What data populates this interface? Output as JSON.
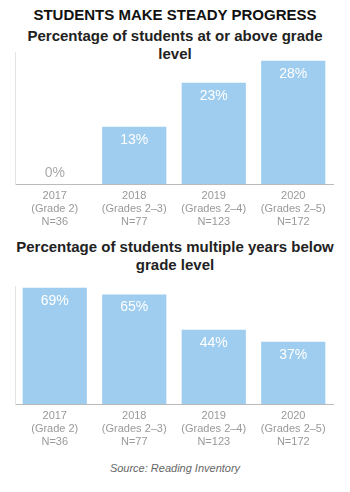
{
  "title": "STUDENTS MAKE STEADY PROGRESS",
  "source": "Source: Reading Inventory",
  "chart_data": [
    {
      "type": "bar",
      "title": "Percentage of students at or above grade level",
      "categories": [
        [
          "2017",
          "(Grade 2)",
          "N=36"
        ],
        [
          "2018",
          "(Grades 2–3)",
          "N=77"
        ],
        [
          "2019",
          "(Grades 2–4)",
          "N=123"
        ],
        [
          "2020",
          "(Grades 2–5)",
          "N=172"
        ]
      ],
      "values": [
        0,
        13,
        23,
        28
      ],
      "value_labels": [
        "0%",
        "13%",
        "23%",
        "28%"
      ],
      "data_labels": true,
      "color": "#9fcdf0",
      "ylim": [
        0,
        30
      ],
      "grid": false,
      "tick_labels": "x"
    },
    {
      "type": "bar",
      "title": "Percentage of students multiple years below grade level",
      "categories": [
        [
          "2017",
          "(Grade 2)",
          "N=36"
        ],
        [
          "2018",
          "(Grades 2–3)",
          "N=77"
        ],
        [
          "2019",
          "(Grades 2–4)",
          "N=123"
        ],
        [
          "2020",
          "(Grades 2–5)",
          "N=172"
        ]
      ],
      "values": [
        69,
        65,
        44,
        37
      ],
      "value_labels": [
        "69%",
        "65%",
        "44%",
        "37%"
      ],
      "data_labels": true,
      "color": "#9fcdf0",
      "ylim": [
        0,
        70
      ],
      "grid": false,
      "tick_labels": "x"
    }
  ]
}
